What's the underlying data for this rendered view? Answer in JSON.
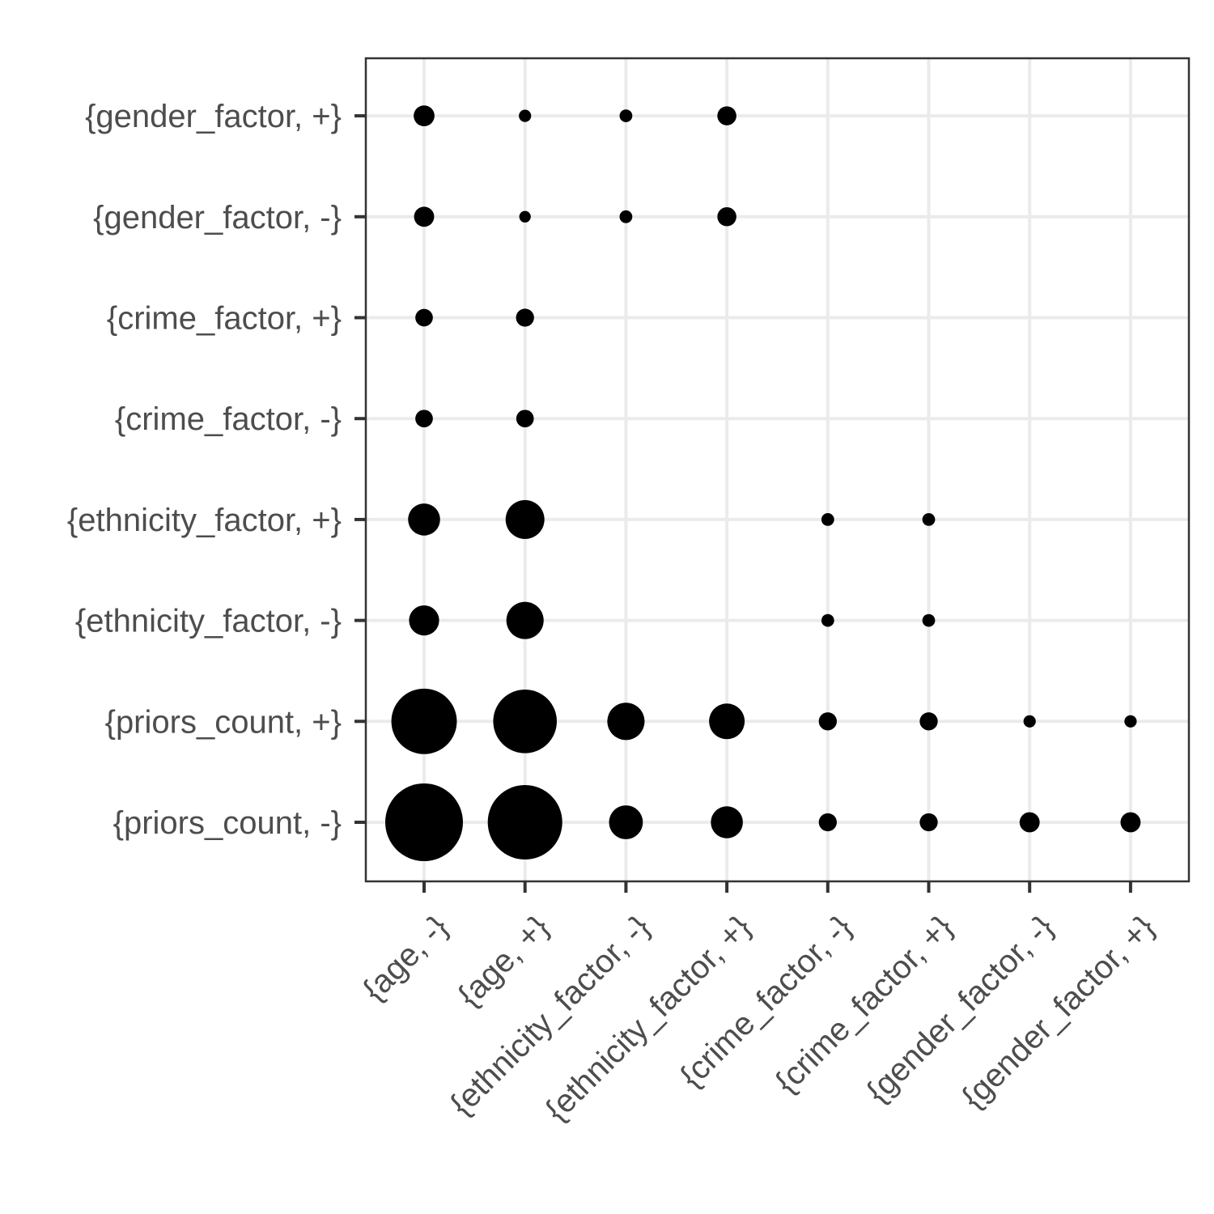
{
  "chart_data": {
    "type": "scatter",
    "subtype": "bubble-matrix",
    "title": "",
    "xlabel": "",
    "ylabel": "",
    "x_categories": [
      "{age, -}",
      "{age, +}",
      "{ethnicity_factor, -}",
      "{ethnicity_factor, +}",
      "{crime_factor, -}",
      "{crime_factor, +}",
      "{gender_factor, -}",
      "{gender_factor, +}"
    ],
    "y_categories": [
      "{priors_count, -}",
      "{priors_count, +}",
      "{ethnicity_factor, -}",
      "{ethnicity_factor, +}",
      "{crime_factor, -}",
      "{crime_factor, +}",
      "{gender_factor, -}",
      "{gender_factor, +}"
    ],
    "size_max": 100,
    "points": [
      {
        "x": "{age, -}",
        "y": "{priors_count, -}",
        "size": 100
      },
      {
        "x": "{age, +}",
        "y": "{priors_count, -}",
        "size": 92
      },
      {
        "x": "{ethnicity_factor, -}",
        "y": "{priors_count, -}",
        "size": 19
      },
      {
        "x": "{ethnicity_factor, +}",
        "y": "{priors_count, -}",
        "size": 17
      },
      {
        "x": "{crime_factor, -}",
        "y": "{priors_count, -}",
        "size": 5.4
      },
      {
        "x": "{crime_factor, +}",
        "y": "{priors_count, -}",
        "size": 5.4
      },
      {
        "x": "{gender_factor, -}",
        "y": "{priors_count, -}",
        "size": 6.7
      },
      {
        "x": "{gender_factor, +}",
        "y": "{priors_count, -}",
        "size": 6.7
      },
      {
        "x": "{age, -}",
        "y": "{priors_count, +}",
        "size": 71
      },
      {
        "x": "{age, +}",
        "y": "{priors_count, +}",
        "size": 67
      },
      {
        "x": "{ethnicity_factor, -}",
        "y": "{priors_count, +}",
        "size": 23
      },
      {
        "x": "{ethnicity_factor, +}",
        "y": "{priors_count, +}",
        "size": 21
      },
      {
        "x": "{crime_factor, -}",
        "y": "{priors_count, +}",
        "size": 5.4
      },
      {
        "x": "{crime_factor, +}",
        "y": "{priors_count, +}",
        "size": 5.4
      },
      {
        "x": "{gender_factor, -}",
        "y": "{priors_count, +}",
        "size": 2.5
      },
      {
        "x": "{gender_factor, +}",
        "y": "{priors_count, +}",
        "size": 2.5
      },
      {
        "x": "{age, -}",
        "y": "{ethnicity_factor, -}",
        "size": 15
      },
      {
        "x": "{age, +}",
        "y": "{ethnicity_factor, -}",
        "size": 23
      },
      {
        "x": "{crime_factor, -}",
        "y": "{ethnicity_factor, -}",
        "size": 2.7
      },
      {
        "x": "{crime_factor, +}",
        "y": "{ethnicity_factor, -}",
        "size": 2.7
      },
      {
        "x": "{age, -}",
        "y": "{ethnicity_factor, +}",
        "size": 17
      },
      {
        "x": "{age, +}",
        "y": "{ethnicity_factor, +}",
        "size": 25
      },
      {
        "x": "{crime_factor, -}",
        "y": "{ethnicity_factor, +}",
        "size": 2.7
      },
      {
        "x": "{crime_factor, +}",
        "y": "{ethnicity_factor, +}",
        "size": 2.7
      },
      {
        "x": "{age, -}",
        "y": "{crime_factor, -}",
        "size": 5.1
      },
      {
        "x": "{age, +}",
        "y": "{crime_factor, -}",
        "size": 5.1
      },
      {
        "x": "{age, -}",
        "y": "{crime_factor, +}",
        "size": 5.1
      },
      {
        "x": "{age, +}",
        "y": "{crime_factor, +}",
        "size": 5.4
      },
      {
        "x": "{age, -}",
        "y": "{gender_factor, -}",
        "size": 6.7
      },
      {
        "x": "{age, +}",
        "y": "{gender_factor, -}",
        "size": 2.2
      },
      {
        "x": "{ethnicity_factor, -}",
        "y": "{gender_factor, -}",
        "size": 2.7
      },
      {
        "x": "{ethnicity_factor, +}",
        "y": "{gender_factor, -}",
        "size": 6.0
      },
      {
        "x": "{age, -}",
        "y": "{gender_factor, +}",
        "size": 7.2
      },
      {
        "x": "{age, +}",
        "y": "{gender_factor, +}",
        "size": 2.5
      },
      {
        "x": "{ethnicity_factor, -}",
        "y": "{gender_factor, +}",
        "size": 2.7
      },
      {
        "x": "{ethnicity_factor, +}",
        "y": "{gender_factor, +}",
        "size": 6.0
      }
    ],
    "grid": true,
    "legend": "none"
  }
}
